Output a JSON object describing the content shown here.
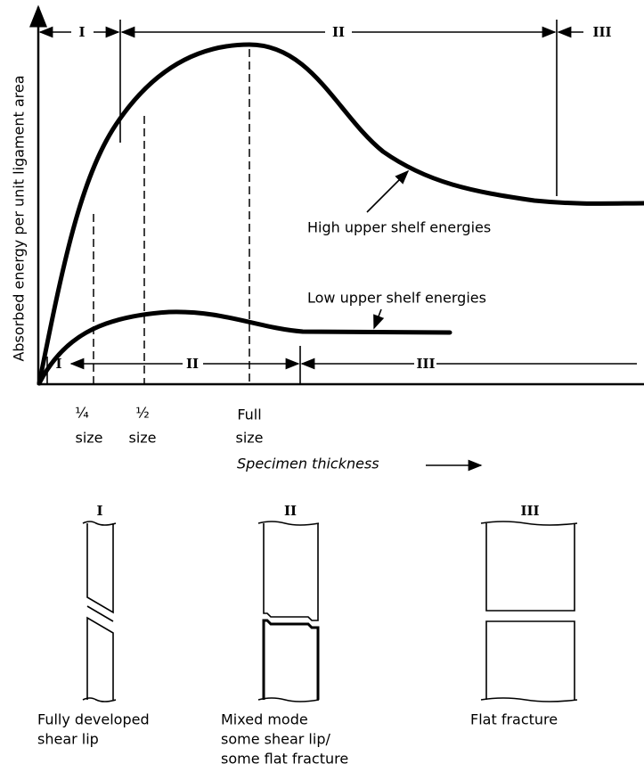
{
  "axes": {
    "y_label": "Absorbed energy per unit ligament area",
    "x_label": "Specimen thickness"
  },
  "high_shelf": {
    "label": "High upper shelf energies",
    "regions": [
      "I",
      "II",
      "III"
    ]
  },
  "low_shelf": {
    "label": "Low upper shelf energies",
    "regions": [
      "I",
      "II",
      "III"
    ]
  },
  "sizes": [
    {
      "fraction": "¼",
      "word": "size"
    },
    {
      "fraction": "½",
      "word": "size"
    },
    {
      "fraction": "Full",
      "word": "size"
    }
  ],
  "specimens": [
    {
      "numeral": "I",
      "caption": [
        "Fully developed",
        "shear lip"
      ]
    },
    {
      "numeral": "II",
      "caption": [
        "Mixed mode",
        "some shear lip/",
        "some flat fracture"
      ]
    },
    {
      "numeral": "III",
      "caption": [
        "Flat fracture"
      ]
    }
  ]
}
